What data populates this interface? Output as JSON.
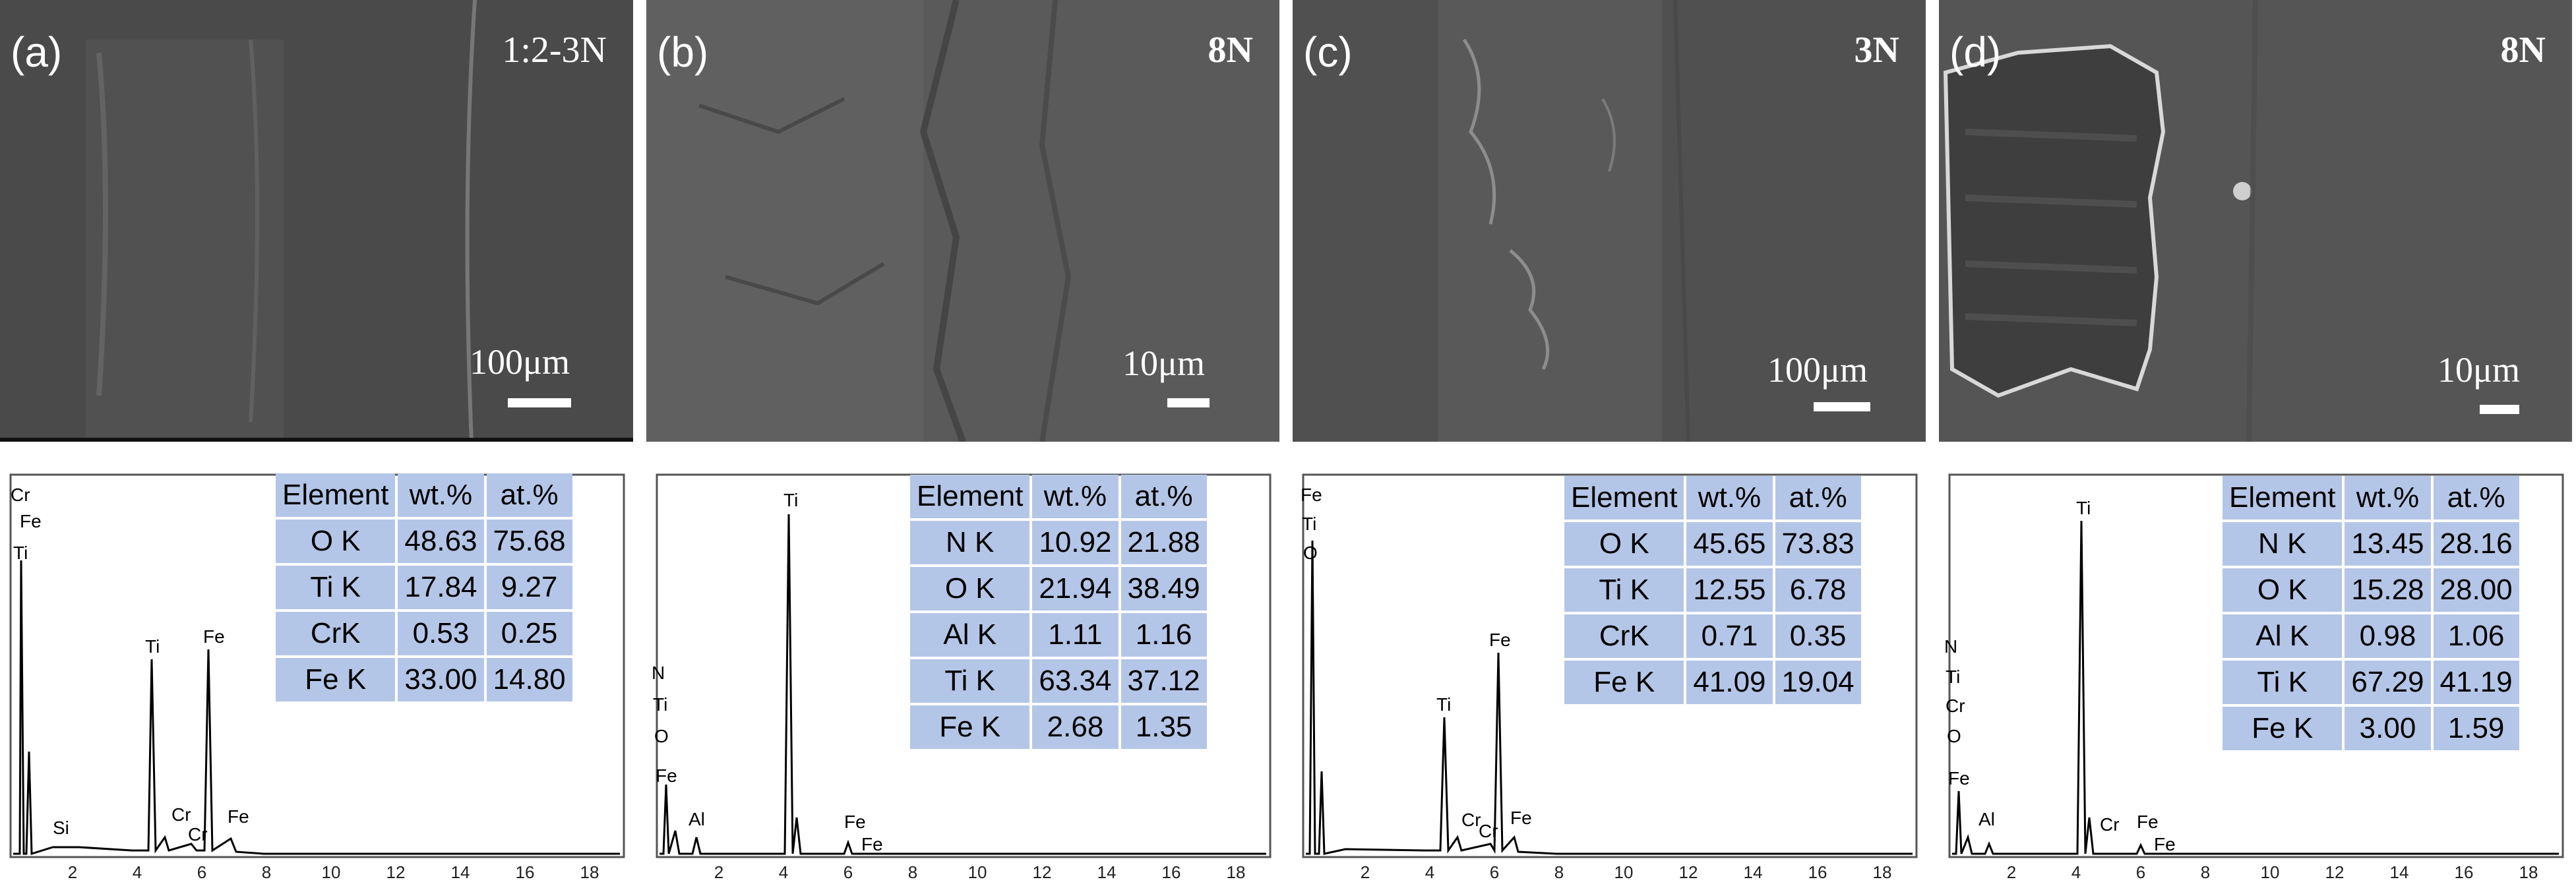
{
  "panels": [
    {
      "label": "(a)",
      "condition": "1:2-3N",
      "scale": "100μm",
      "table": {
        "headers": [
          "Element",
          "wt.%",
          "at.%"
        ],
        "rows": [
          [
            "O K",
            "48.63",
            "75.68"
          ],
          [
            "Ti K",
            "17.84",
            "9.27"
          ],
          [
            "CrK",
            "0.53",
            "0.25"
          ],
          [
            "Fe K",
            "33.00",
            "14.80"
          ]
        ]
      },
      "peak_labels": [
        "Cr",
        "Fe",
        "Ti",
        "Si",
        "Ti",
        "Cr",
        "Cr",
        "Fe",
        "Fe"
      ]
    },
    {
      "label": "(b)",
      "condition": "8N",
      "scale": "10μm",
      "table": {
        "headers": [
          "Element",
          "wt.%",
          "at.%"
        ],
        "rows": [
          [
            "N K",
            "10.92",
            "21.88"
          ],
          [
            "O K",
            "21.94",
            "38.49"
          ],
          [
            "Al K",
            "1.11",
            "1.16"
          ],
          [
            "Ti K",
            "63.34",
            "37.12"
          ],
          [
            "Fe K",
            "2.68",
            "1.35"
          ]
        ]
      },
      "peak_labels": [
        "N",
        "Ti",
        "O",
        "Fe",
        "Al",
        "Ti",
        "Fe",
        "Fe"
      ]
    },
    {
      "label": "(c)",
      "condition": "3N",
      "scale": "100μm",
      "table": {
        "headers": [
          "Element",
          "wt.%",
          "at.%"
        ],
        "rows": [
          [
            "O K",
            "45.65",
            "73.83"
          ],
          [
            "Ti K",
            "12.55",
            "6.78"
          ],
          [
            "CrK",
            "0.71",
            "0.35"
          ],
          [
            "Fe K",
            "41.09",
            "19.04"
          ]
        ]
      },
      "peak_labels": [
        "Fe",
        "Ti",
        "O",
        "Cr",
        "Ti",
        "Cr",
        "Fe",
        "Fe"
      ]
    },
    {
      "label": "(d)",
      "condition": "8N",
      "scale": "10μm",
      "table": {
        "headers": [
          "Element",
          "wt.%",
          "at.%"
        ],
        "rows": [
          [
            "N K",
            "13.45",
            "28.16"
          ],
          [
            "O K",
            "15.28",
            "28.00"
          ],
          [
            "Al K",
            "0.98",
            "1.06"
          ],
          [
            "Ti K",
            "67.29",
            "41.19"
          ],
          [
            "Fe K",
            "3.00",
            "1.59"
          ]
        ]
      },
      "peak_labels": [
        "N",
        "Ti",
        "Cr",
        "O",
        "Fe",
        "Al",
        "Ti",
        "Cr",
        "Fe",
        "Fe"
      ]
    }
  ],
  "x_ticks": [
    "2",
    "4",
    "6",
    "8",
    "10",
    "12",
    "14",
    "16",
    "18"
  ]
}
